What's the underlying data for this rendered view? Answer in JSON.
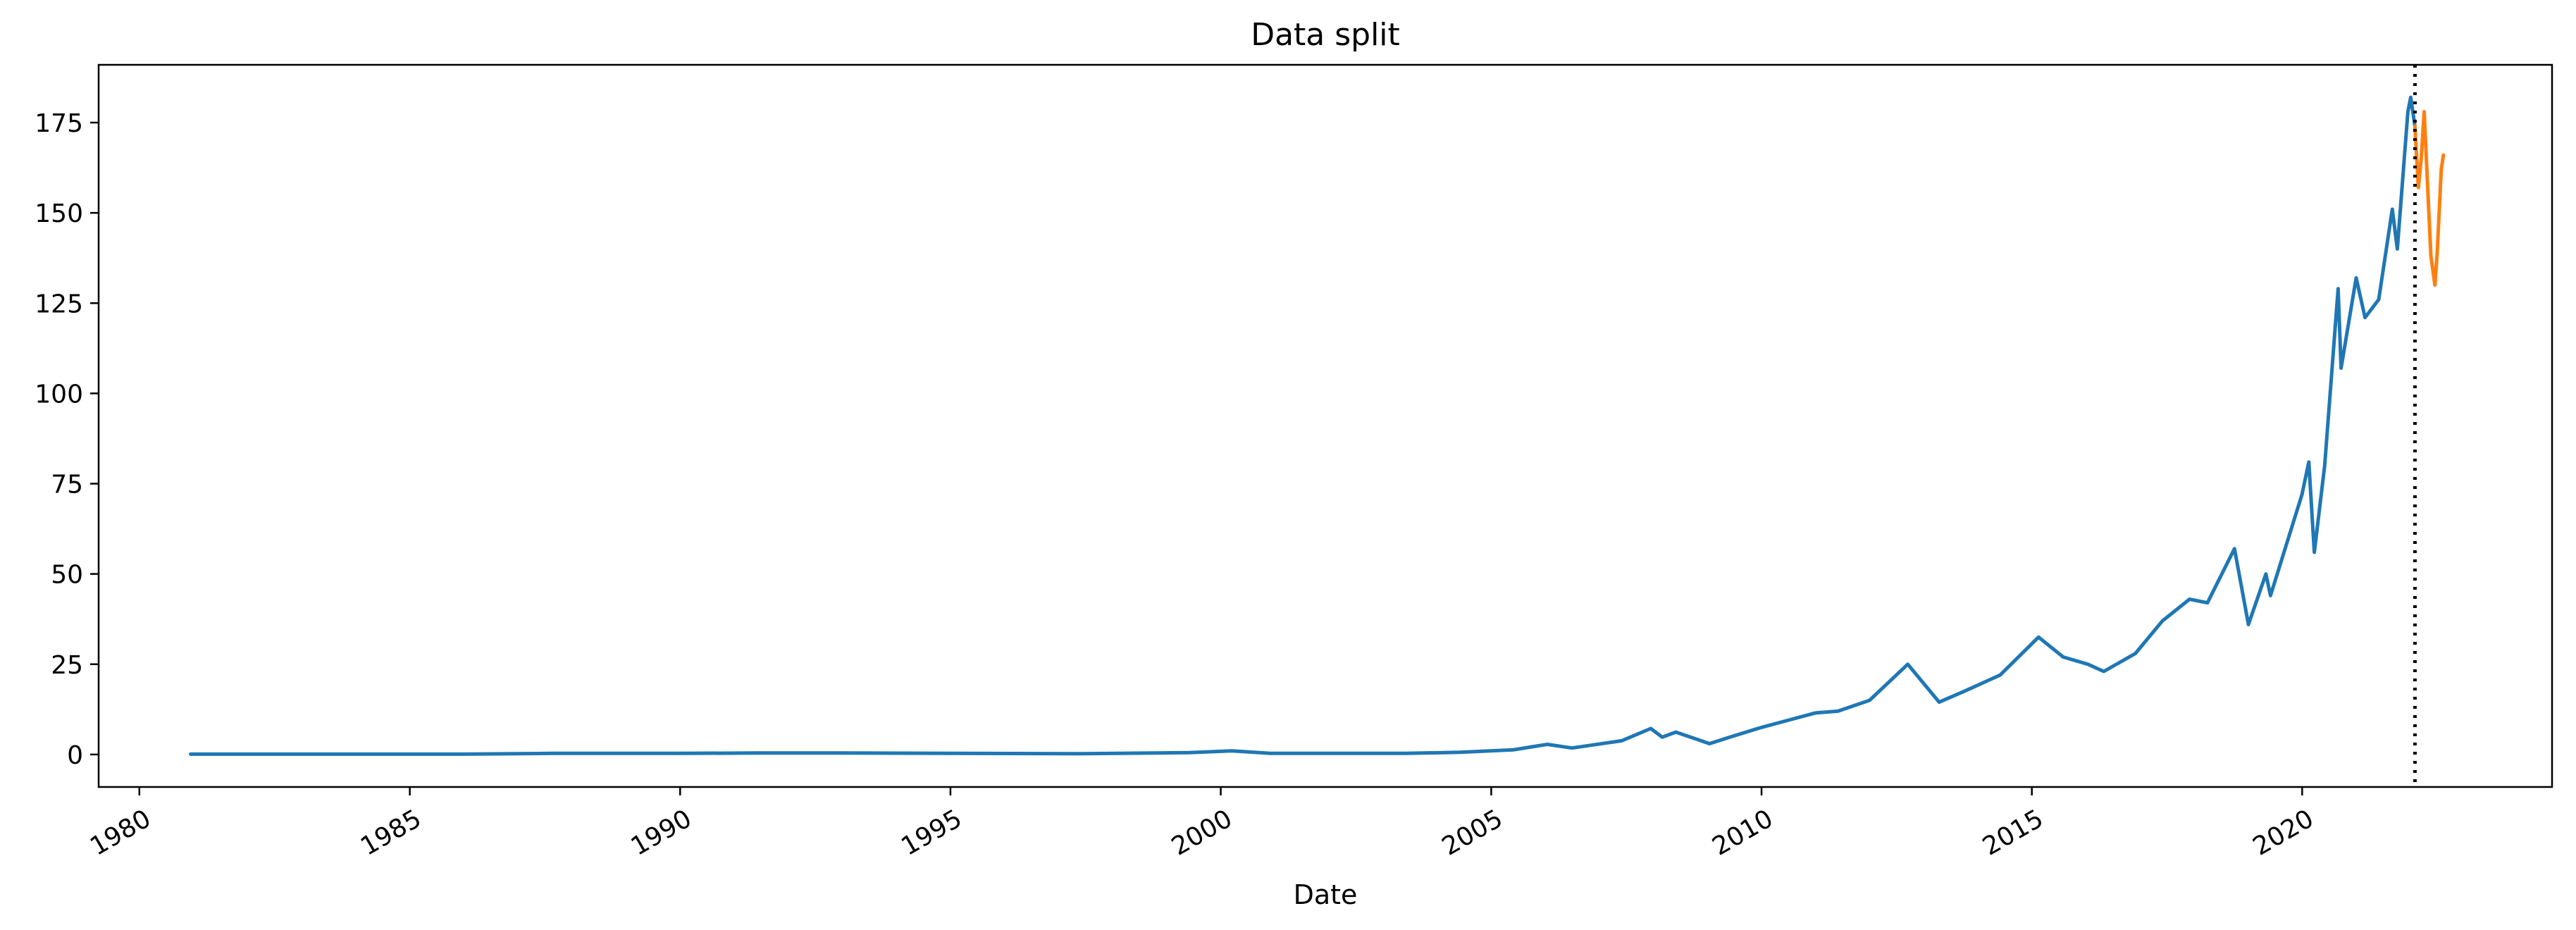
{
  "chart_data": {
    "type": "line",
    "title": "Data split",
    "xlabel": "Date",
    "ylabel": "",
    "xlim": [
      "1979-04-01",
      "2024-08-15"
    ],
    "ylim": [
      -9,
      191
    ],
    "x_ticks": [
      {
        "date": "1980-01-01",
        "label": "1980"
      },
      {
        "date": "1985-01-01",
        "label": "1985"
      },
      {
        "date": "1990-01-01",
        "label": "1990"
      },
      {
        "date": "1995-01-01",
        "label": "1995"
      },
      {
        "date": "2000-01-01",
        "label": "2000"
      },
      {
        "date": "2005-01-01",
        "label": "2005"
      },
      {
        "date": "2010-01-01",
        "label": "2010"
      },
      {
        "date": "2015-01-01",
        "label": "2015"
      },
      {
        "date": "2020-01-01",
        "label": "2020"
      }
    ],
    "y_ticks": [
      0,
      25,
      50,
      75,
      100,
      125,
      150,
      175
    ],
    "grid": false,
    "legend": false,
    "split_line": {
      "date": "2022-02-01",
      "style": "dotted",
      "color": "#000000"
    },
    "series": [
      {
        "color": "#1f77b4",
        "points": [
          [
            "1980-12-12",
            0.1
          ],
          [
            "1983-06-01",
            0.1
          ],
          [
            "1986-01-01",
            0.1
          ],
          [
            "1987-09-01",
            0.3
          ],
          [
            "1990-01-01",
            0.3
          ],
          [
            "1991-06-01",
            0.4
          ],
          [
            "1993-01-01",
            0.4
          ],
          [
            "1995-01-01",
            0.3
          ],
          [
            "1997-06-01",
            0.2
          ],
          [
            "1999-06-01",
            0.5
          ],
          [
            "2000-03-15",
            1.0
          ],
          [
            "2000-06-01",
            0.8
          ],
          [
            "2000-12-01",
            0.3
          ],
          [
            "2003-06-01",
            0.3
          ],
          [
            "2004-06-01",
            0.6
          ],
          [
            "2005-06-01",
            1.3
          ],
          [
            "2006-01-15",
            2.8
          ],
          [
            "2006-07-01",
            1.8
          ],
          [
            "2007-06-01",
            3.8
          ],
          [
            "2007-12-15",
            7.2
          ],
          [
            "2008-03-01",
            4.8
          ],
          [
            "2008-06-01",
            6.2
          ],
          [
            "2009-01-15",
            3.0
          ],
          [
            "2009-06-01",
            4.8
          ],
          [
            "2010-01-01",
            7.5
          ],
          [
            "2010-12-31",
            11.5
          ],
          [
            "2011-06-01",
            12.0
          ],
          [
            "2012-01-01",
            15.0
          ],
          [
            "2012-09-15",
            25.0
          ],
          [
            "2013-04-15",
            14.5
          ],
          [
            "2013-10-01",
            17.5
          ],
          [
            "2014-06-01",
            22.0
          ],
          [
            "2015-02-15",
            32.5
          ],
          [
            "2015-08-01",
            27.0
          ],
          [
            "2016-01-15",
            25.0
          ],
          [
            "2016-05-01",
            23.0
          ],
          [
            "2016-12-01",
            28.0
          ],
          [
            "2017-06-01",
            37.0
          ],
          [
            "2017-12-01",
            43.0
          ],
          [
            "2018-04-01",
            42.0
          ],
          [
            "2018-10-01",
            57.0
          ],
          [
            "2019-01-03",
            36.0
          ],
          [
            "2019-05-01",
            50.0
          ],
          [
            "2019-06-01",
            44.0
          ],
          [
            "2019-12-31",
            72.0
          ],
          [
            "2020-02-15",
            81.0
          ],
          [
            "2020-03-23",
            56.0
          ],
          [
            "2020-06-01",
            80.0
          ],
          [
            "2020-08-31",
            129.0
          ],
          [
            "2020-09-20",
            107.0
          ],
          [
            "2020-12-31",
            132.0
          ],
          [
            "2021-03-01",
            121.0
          ],
          [
            "2021-06-01",
            126.0
          ],
          [
            "2021-09-01",
            151.0
          ],
          [
            "2021-10-05",
            140.0
          ],
          [
            "2021-12-15",
            178.0
          ],
          [
            "2022-01-03",
            182.0
          ],
          [
            "2022-02-01",
            174.0
          ]
        ]
      },
      {
        "color": "#ff7f0e",
        "points": [
          [
            "2022-02-01",
            174.0
          ],
          [
            "2022-02-24",
            157.0
          ],
          [
            "2022-03-15",
            165.0
          ],
          [
            "2022-04-04",
            178.0
          ],
          [
            "2022-04-28",
            157.0
          ],
          [
            "2022-05-20",
            138.0
          ],
          [
            "2022-06-16",
            130.0
          ],
          [
            "2022-07-01",
            139.0
          ],
          [
            "2022-07-29",
            162.0
          ],
          [
            "2022-08-12",
            166.0
          ]
        ]
      }
    ]
  }
}
